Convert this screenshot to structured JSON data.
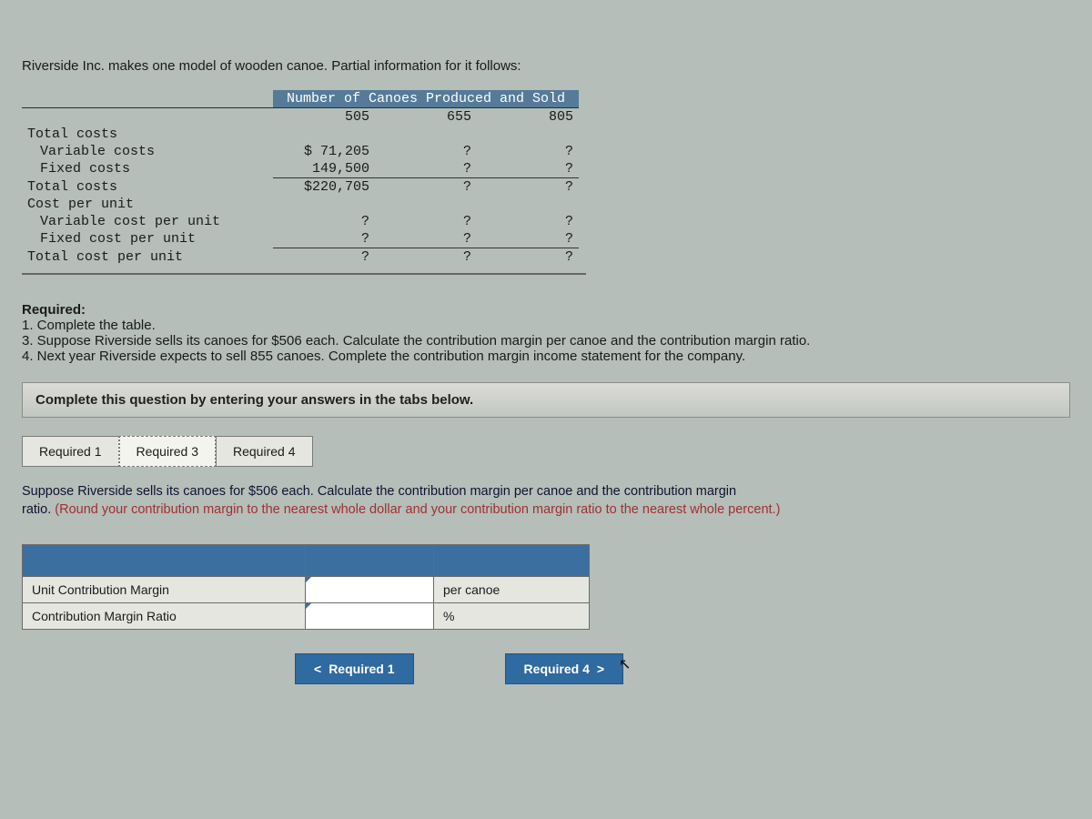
{
  "intro": "Riverside Inc. makes one model of wooden canoe. Partial information for it follows:",
  "table": {
    "header_title": "Number of Canoes Produced and Sold",
    "cols": [
      "505",
      "655",
      "805"
    ],
    "rows": [
      {
        "label": "Total costs",
        "indent": 0,
        "v": [
          "",
          "",
          ""
        ]
      },
      {
        "label": "Variable costs",
        "indent": 1,
        "v": [
          "$ 71,205",
          "?",
          "?"
        ]
      },
      {
        "label": "Fixed costs",
        "indent": 1,
        "v": [
          "149,500",
          "?",
          "?"
        ],
        "under": true
      },
      {
        "label": "Total costs",
        "indent": 0,
        "v": [
          "$220,705",
          "?",
          "?"
        ],
        "dbl": true
      },
      {
        "label": "Cost per unit",
        "indent": 0,
        "v": [
          "",
          "",
          ""
        ]
      },
      {
        "label": "Variable cost per unit",
        "indent": 1,
        "v": [
          "?",
          "?",
          "?"
        ]
      },
      {
        "label": "Fixed cost per unit",
        "indent": 1,
        "v": [
          "?",
          "?",
          "?"
        ],
        "under": true
      },
      {
        "label": "Total cost per unit",
        "indent": 0,
        "v": [
          "?",
          "?",
          "?"
        ],
        "dbl": true
      }
    ]
  },
  "required": {
    "heading": "Required:",
    "items": [
      "1. Complete the table.",
      "3. Suppose Riverside sells its canoes for $506 each. Calculate the contribution margin per canoe and the contribution margin ratio.",
      "4. Next year Riverside expects to sell 855 canoes. Complete the contribution margin income statement for the company."
    ]
  },
  "instruction_band": "Complete this question by entering your answers in the tabs below.",
  "tabs": [
    {
      "label": "Required 1",
      "active": false
    },
    {
      "label": "Required 3",
      "active": true
    },
    {
      "label": "Required 4",
      "active": false
    }
  ],
  "panel": {
    "text_main": "Suppose Riverside sells its canoes for $506 each. Calculate the contribution margin per canoe and the contribution margin ",
    "text_main2": "ratio. ",
    "hint": "(Round your contribution margin to the nearest whole dollar and your contribution margin ratio to the nearest whole percent.)"
  },
  "answer_table": {
    "rows": [
      {
        "label": "Unit Contribution Margin",
        "unit": "per canoe"
      },
      {
        "label": "Contribution Margin Ratio",
        "unit": "%"
      }
    ]
  },
  "nav": {
    "prev": "Required 1",
    "next": "Required 4",
    "lt": "<",
    "gt": ">"
  }
}
